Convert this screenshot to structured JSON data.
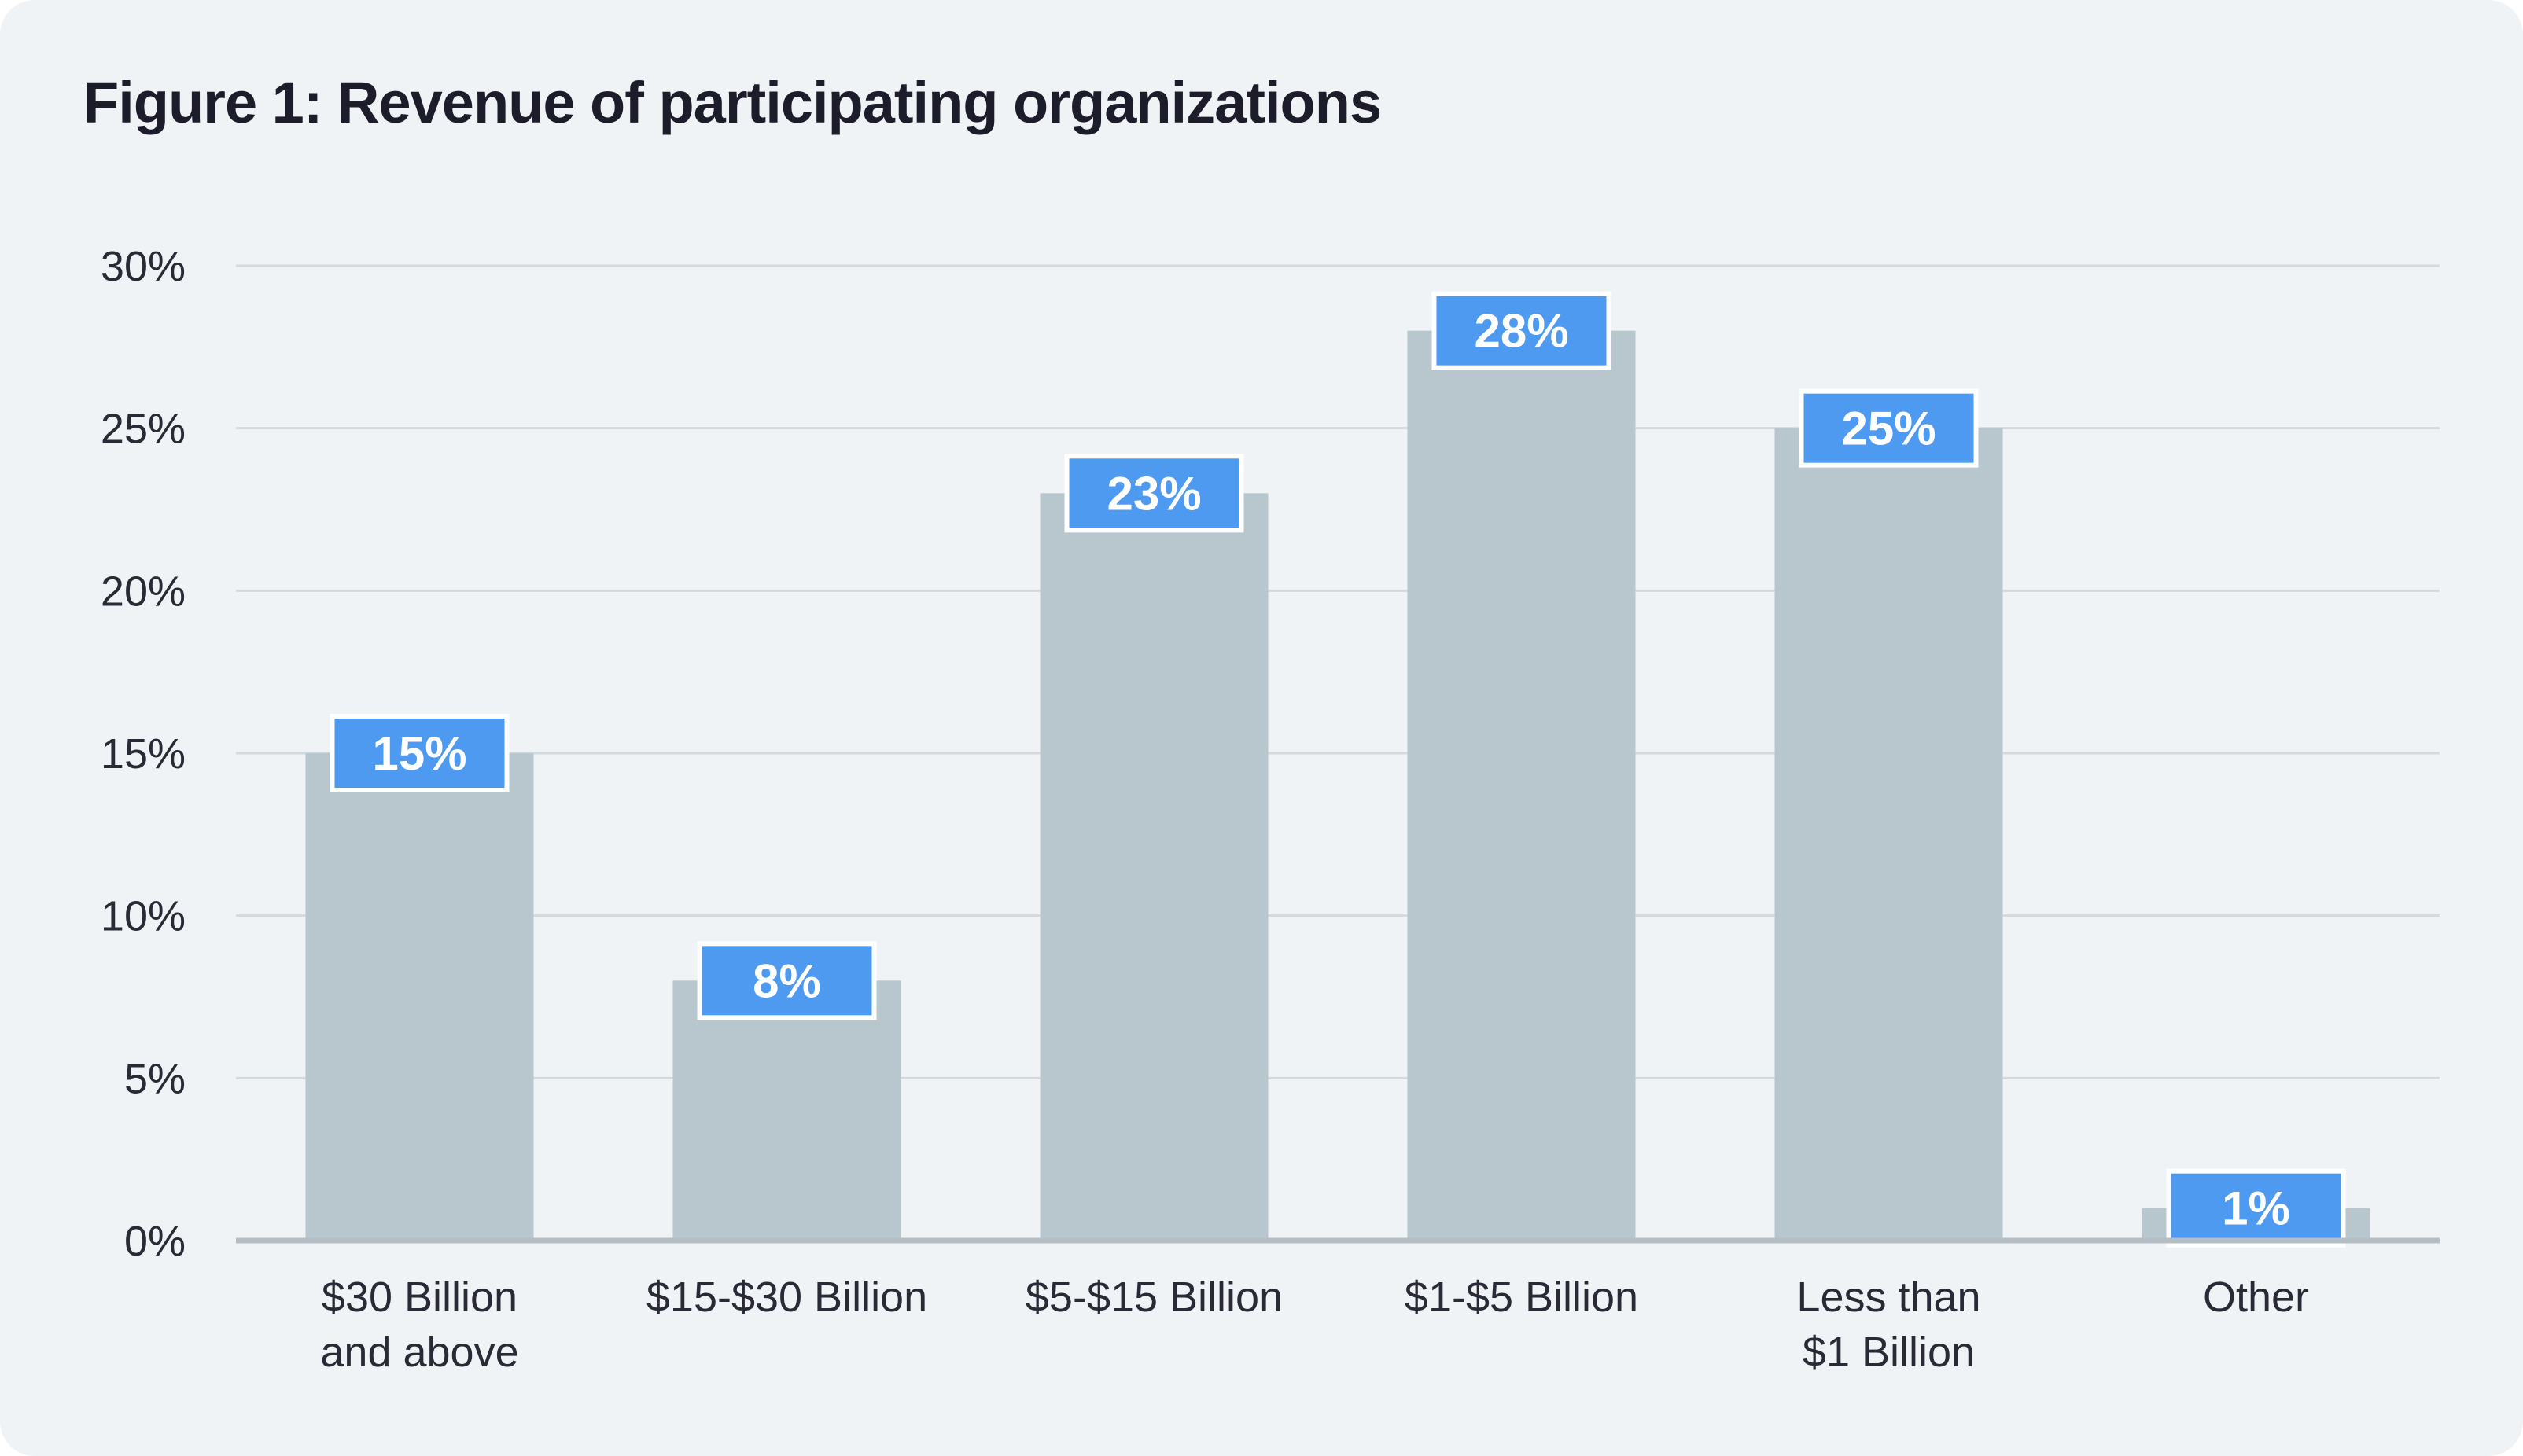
{
  "chart_data": {
    "type": "bar",
    "title": "Figure 1: Revenue of participating organizations",
    "categories": [
      [
        "$30 Billion",
        "and above"
      ],
      [
        "$15-$30 Billion"
      ],
      [
        "$5-$15 Billion"
      ],
      [
        "$1-$5 Billion"
      ],
      [
        "Less than",
        "$1 Billion"
      ],
      [
        "Other"
      ]
    ],
    "values": [
      15,
      8,
      23,
      28,
      25,
      1
    ],
    "data_labels": [
      "15%",
      "8%",
      "23%",
      "28%",
      "25%",
      "1%"
    ],
    "y_ticks": [
      0,
      5,
      10,
      15,
      20,
      25,
      30
    ],
    "y_tick_labels": [
      "0%",
      "5%",
      "10%",
      "15%",
      "20%",
      "25%",
      "30%"
    ],
    "ylim": [
      0,
      30
    ],
    "xlabel": "",
    "ylabel": "",
    "grid": true,
    "colors": {
      "background": "#eff3f5",
      "bar": "#b8c6ce",
      "label_box": "#4d9af0",
      "label_border": "#ffffff",
      "gridline": "#d3dade",
      "axis": "#b5bec4",
      "text": "#2a2a36",
      "title": "#1c1c2a"
    }
  }
}
